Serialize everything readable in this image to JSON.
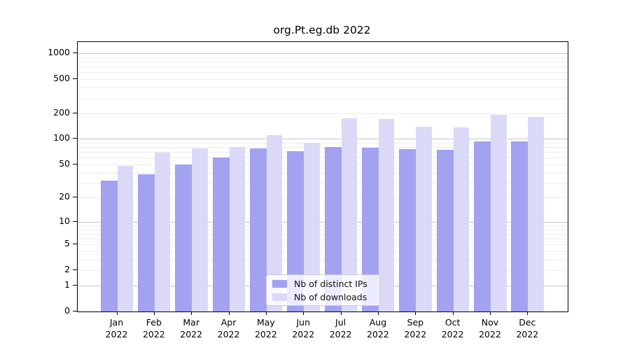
{
  "chart_data": {
    "type": "bar",
    "title": "org.Pt.eg.db 2022",
    "categories": [
      "Jan 2022",
      "Feb 2022",
      "Mar 2022",
      "Apr 2022",
      "May 2022",
      "Jun 2022",
      "Jul 2022",
      "Aug 2022",
      "Sep 2022",
      "Oct 2022",
      "Nov 2022",
      "Dec 2022"
    ],
    "x_tick_months": [
      "Jan",
      "Feb",
      "Mar",
      "Apr",
      "May",
      "Jun",
      "Jul",
      "Aug",
      "Sep",
      "Oct",
      "Nov",
      "Dec"
    ],
    "x_tick_year": "2022",
    "series": [
      {
        "name": "Nb of distinct IPs",
        "color": "#a2a2f0",
        "values": [
          32,
          38,
          50,
          60,
          77,
          72,
          80,
          79,
          76,
          75,
          94,
          93
        ]
      },
      {
        "name": "Nb of downloads",
        "color": "#dadaf8",
        "values": [
          48,
          69,
          78,
          80,
          110,
          90,
          175,
          170,
          140,
          137,
          190,
          180
        ]
      }
    ],
    "ylabel": "",
    "xlabel": "",
    "y_ticks": [
      0,
      1,
      2,
      5,
      10,
      20,
      50,
      100,
      200,
      500,
      1000
    ],
    "y_scale": "log10(value+1)",
    "ylim": [
      0,
      1350
    ],
    "grid": true,
    "major_grid_values": [
      1,
      10,
      100,
      1000
    ],
    "legend_position": "inside lower-center",
    "colors": {
      "major_grid": "#c6c6c6",
      "minor_grid": "#ededed",
      "axis": "#000000",
      "background": "#ffffff"
    }
  }
}
